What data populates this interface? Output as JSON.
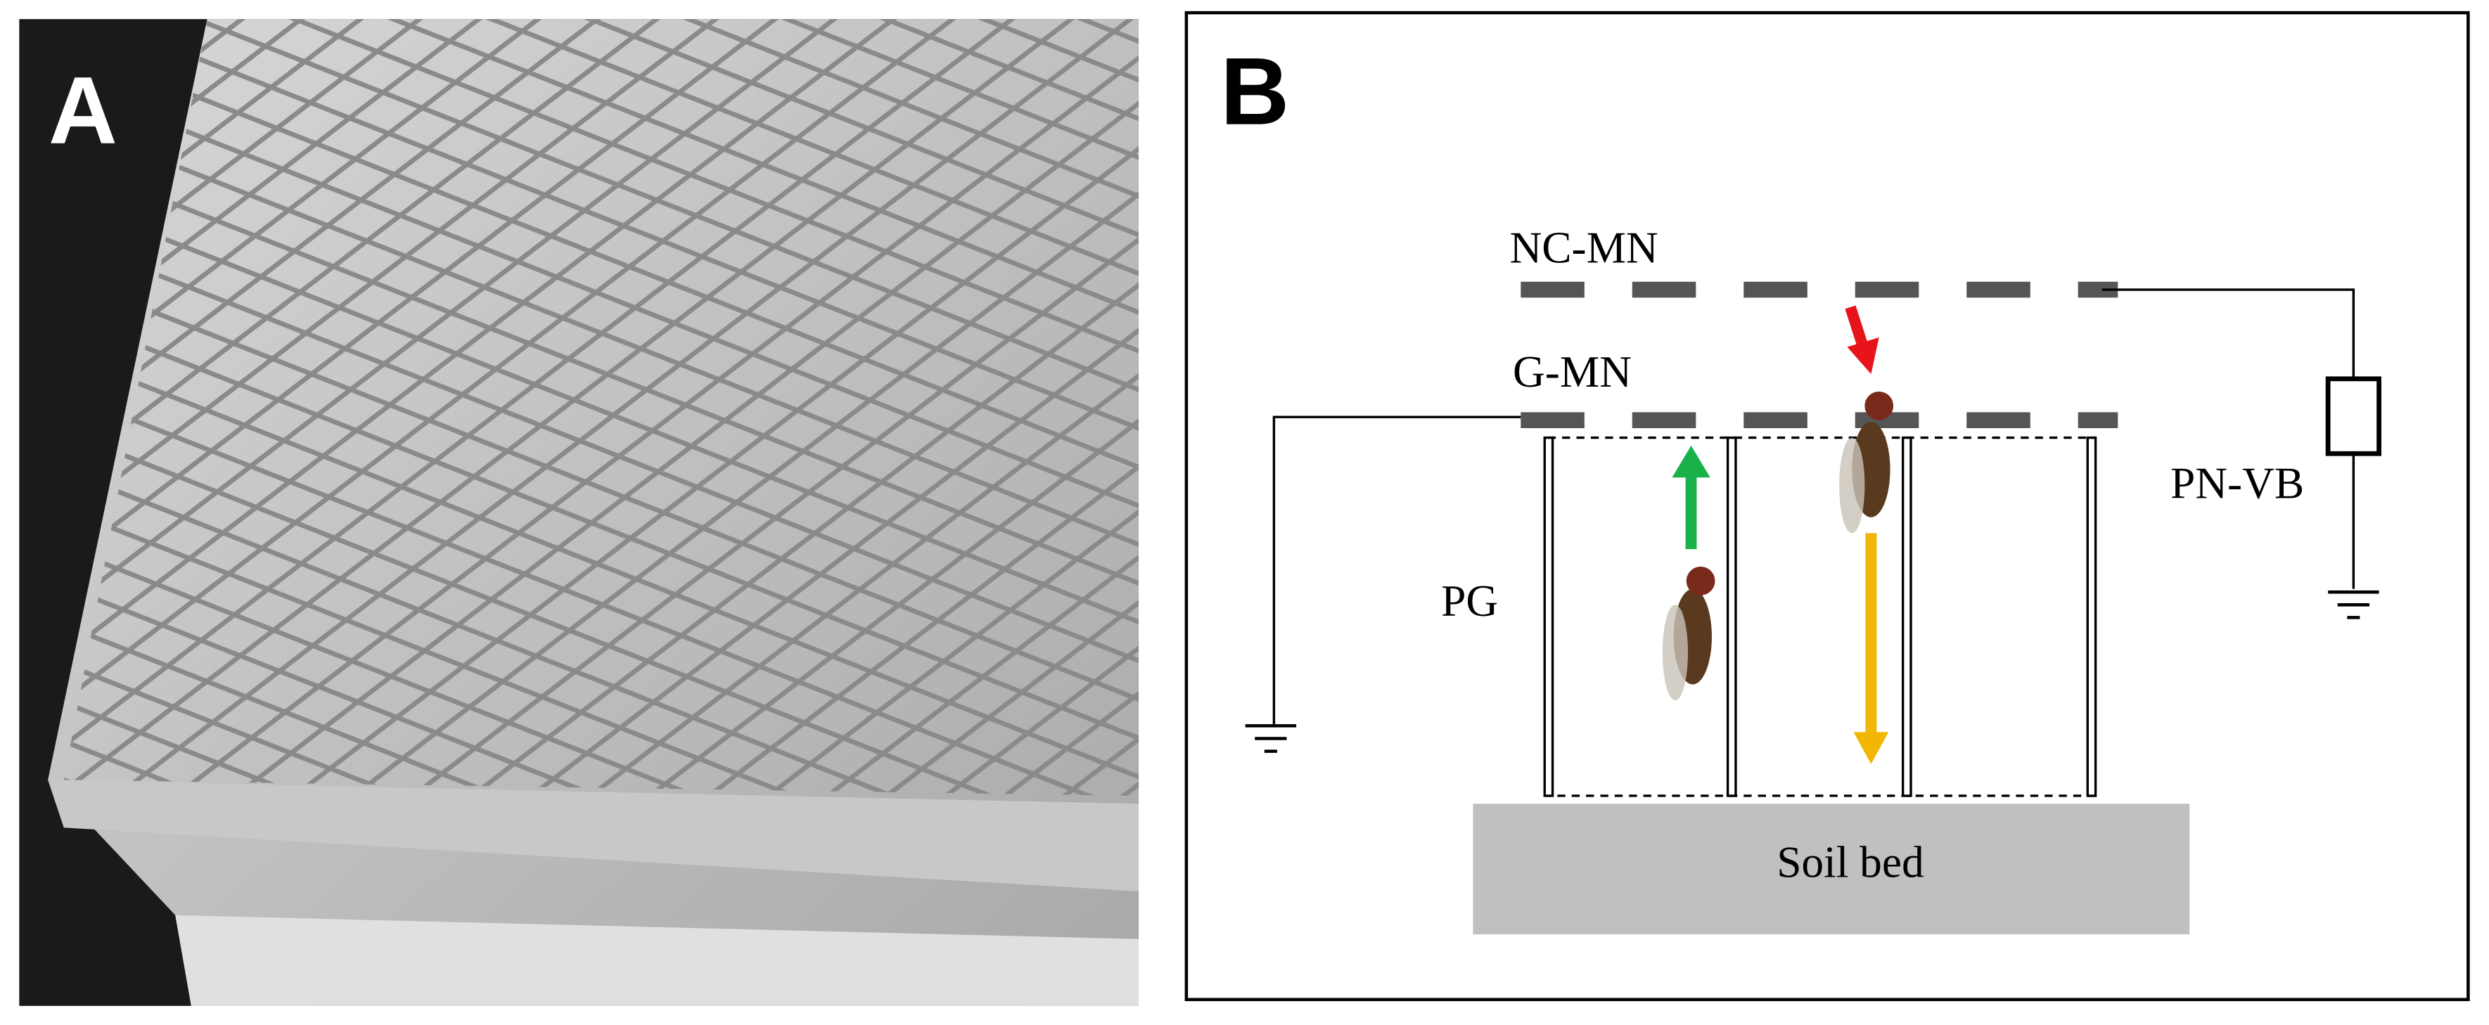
{
  "panel_a": {
    "label": "A"
  },
  "panel_b": {
    "label": "B",
    "nc_mn": "NC-MN",
    "g_mn": "G-MN",
    "pg": "PG",
    "pn_vb": "PN-VB",
    "soil_bed": "Soil bed"
  }
}
